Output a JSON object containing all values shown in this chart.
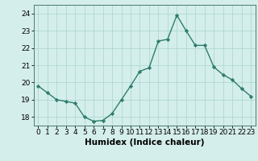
{
  "x": [
    0,
    1,
    2,
    3,
    4,
    5,
    6,
    7,
    8,
    9,
    10,
    11,
    12,
    13,
    14,
    15,
    16,
    17,
    18,
    19,
    20,
    21,
    22,
    23
  ],
  "y": [
    19.8,
    19.4,
    19.0,
    18.9,
    18.8,
    18.0,
    17.75,
    17.8,
    18.2,
    19.0,
    19.8,
    20.65,
    20.85,
    22.4,
    22.5,
    23.9,
    23.0,
    22.15,
    22.15,
    20.9,
    20.45,
    20.15,
    19.65,
    19.2
  ],
  "line_color": "#2e7d6e",
  "marker": "D",
  "marker_size": 2.2,
  "line_width": 1.0,
  "bg_color": "#d4eeeb",
  "grid_color": "#afd8d2",
  "xlabel": "Humidex (Indice chaleur)",
  "xlabel_fontsize": 7.5,
  "ylabel_ticks": [
    18,
    19,
    20,
    21,
    22,
    23,
    24
  ],
  "xlim": [
    -0.5,
    23.5
  ],
  "ylim": [
    17.5,
    24.5
  ],
  "tick_fontsize": 6.5
}
